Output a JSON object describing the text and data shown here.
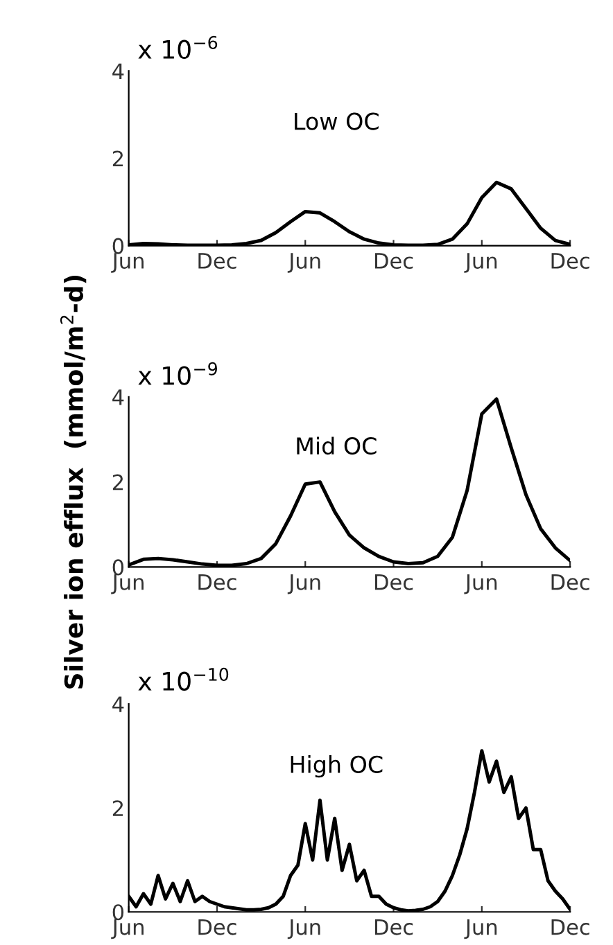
{
  "chart_data": [
    {
      "type": "line",
      "annotations": [
        "x 10$^{−6}$",
        "Low OC"
      ],
      "categories": [
        "Jun",
        null,
        null,
        null,
        null,
        null,
        "Dec",
        null,
        null,
        null,
        null,
        null,
        "Jun",
        null,
        null,
        null,
        null,
        null,
        "Dec",
        null,
        null,
        null,
        null,
        null,
        "Jun",
        null,
        null,
        null,
        null,
        null,
        "Dec"
      ],
      "series": [
        {
          "color": "#000000",
          "values": [
            0.02,
            0.05,
            0.04,
            0.02,
            0.01,
            0.01,
            0.01,
            0.02,
            0.05,
            0.12,
            0.3,
            0.55,
            0.78,
            0.75,
            0.55,
            0.32,
            0.15,
            0.06,
            0.02,
            0.01,
            0.01,
            0.03,
            0.15,
            0.5,
            1.1,
            1.45,
            1.3,
            0.85,
            0.4,
            0.12,
            0.03
          ]
        }
      ],
      "ylim": [
        0,
        4
      ],
      "yticks": [
        0,
        2,
        4
      ],
      "grid": false,
      "marker": "none",
      "line_style": "solid"
    },
    {
      "type": "line",
      "ylabel": "Silver ion efflux  (mmol/m$^{2}$-d)",
      "annotations": [
        "x 10$^{−9}$",
        "Mid OC"
      ],
      "categories": [
        "Jun",
        null,
        null,
        null,
        null,
        null,
        "Dec",
        null,
        null,
        null,
        null,
        null,
        "Jun",
        null,
        null,
        null,
        null,
        null,
        "Dec",
        null,
        null,
        null,
        null,
        null,
        "Jun",
        null,
        null,
        null,
        null,
        null,
        "Dec"
      ],
      "series": [
        {
          "color": "#000000",
          "values": [
            0.05,
            0.18,
            0.2,
            0.17,
            0.12,
            0.07,
            0.04,
            0.04,
            0.08,
            0.2,
            0.55,
            1.2,
            1.95,
            2.0,
            1.3,
            0.75,
            0.45,
            0.25,
            0.12,
            0.08,
            0.1,
            0.25,
            0.7,
            1.8,
            3.6,
            3.95,
            2.8,
            1.7,
            0.9,
            0.45,
            0.15
          ]
        }
      ],
      "ylim": [
        0,
        4
      ],
      "yticks": [
        0,
        2,
        4
      ],
      "grid": false,
      "marker": "none",
      "line_style": "solid"
    },
    {
      "type": "line",
      "annotations": [
        "x 10$^{−10}$",
        "High OC"
      ],
      "categories": [
        "Jun",
        null,
        null,
        null,
        null,
        null,
        null,
        null,
        null,
        null,
        null,
        null,
        "Dec",
        null,
        null,
        null,
        null,
        null,
        null,
        null,
        null,
        null,
        null,
        null,
        "Jun",
        null,
        null,
        null,
        null,
        null,
        null,
        null,
        null,
        null,
        null,
        null,
        "Dec",
        null,
        null,
        null,
        null,
        null,
        null,
        null,
        null,
        null,
        null,
        null,
        "Jun",
        null,
        null,
        null,
        null,
        null,
        null,
        null,
        null,
        null,
        null,
        null,
        "Dec"
      ],
      "series": [
        {
          "color": "#000000",
          "values": [
            0.3,
            0.1,
            0.35,
            0.15,
            0.7,
            0.25,
            0.55,
            0.2,
            0.6,
            0.2,
            0.3,
            0.2,
            0.15,
            0.1,
            0.08,
            0.06,
            0.04,
            0.04,
            0.05,
            0.08,
            0.15,
            0.3,
            0.7,
            0.9,
            1.7,
            1.0,
            2.15,
            1.0,
            1.8,
            0.8,
            1.3,
            0.6,
            0.8,
            0.3,
            0.3,
            0.15,
            0.08,
            0.04,
            0.02,
            0.03,
            0.05,
            0.1,
            0.2,
            0.4,
            0.7,
            1.1,
            1.6,
            2.3,
            3.1,
            2.5,
            2.9,
            2.3,
            2.6,
            1.8,
            2.0,
            1.2,
            1.2,
            0.6,
            0.4,
            0.25,
            0.05
          ]
        }
      ],
      "ylim": [
        0,
        4
      ],
      "yticks": [
        0,
        2,
        4
      ],
      "grid": false,
      "marker": "none",
      "line_style": "solid"
    }
  ]
}
